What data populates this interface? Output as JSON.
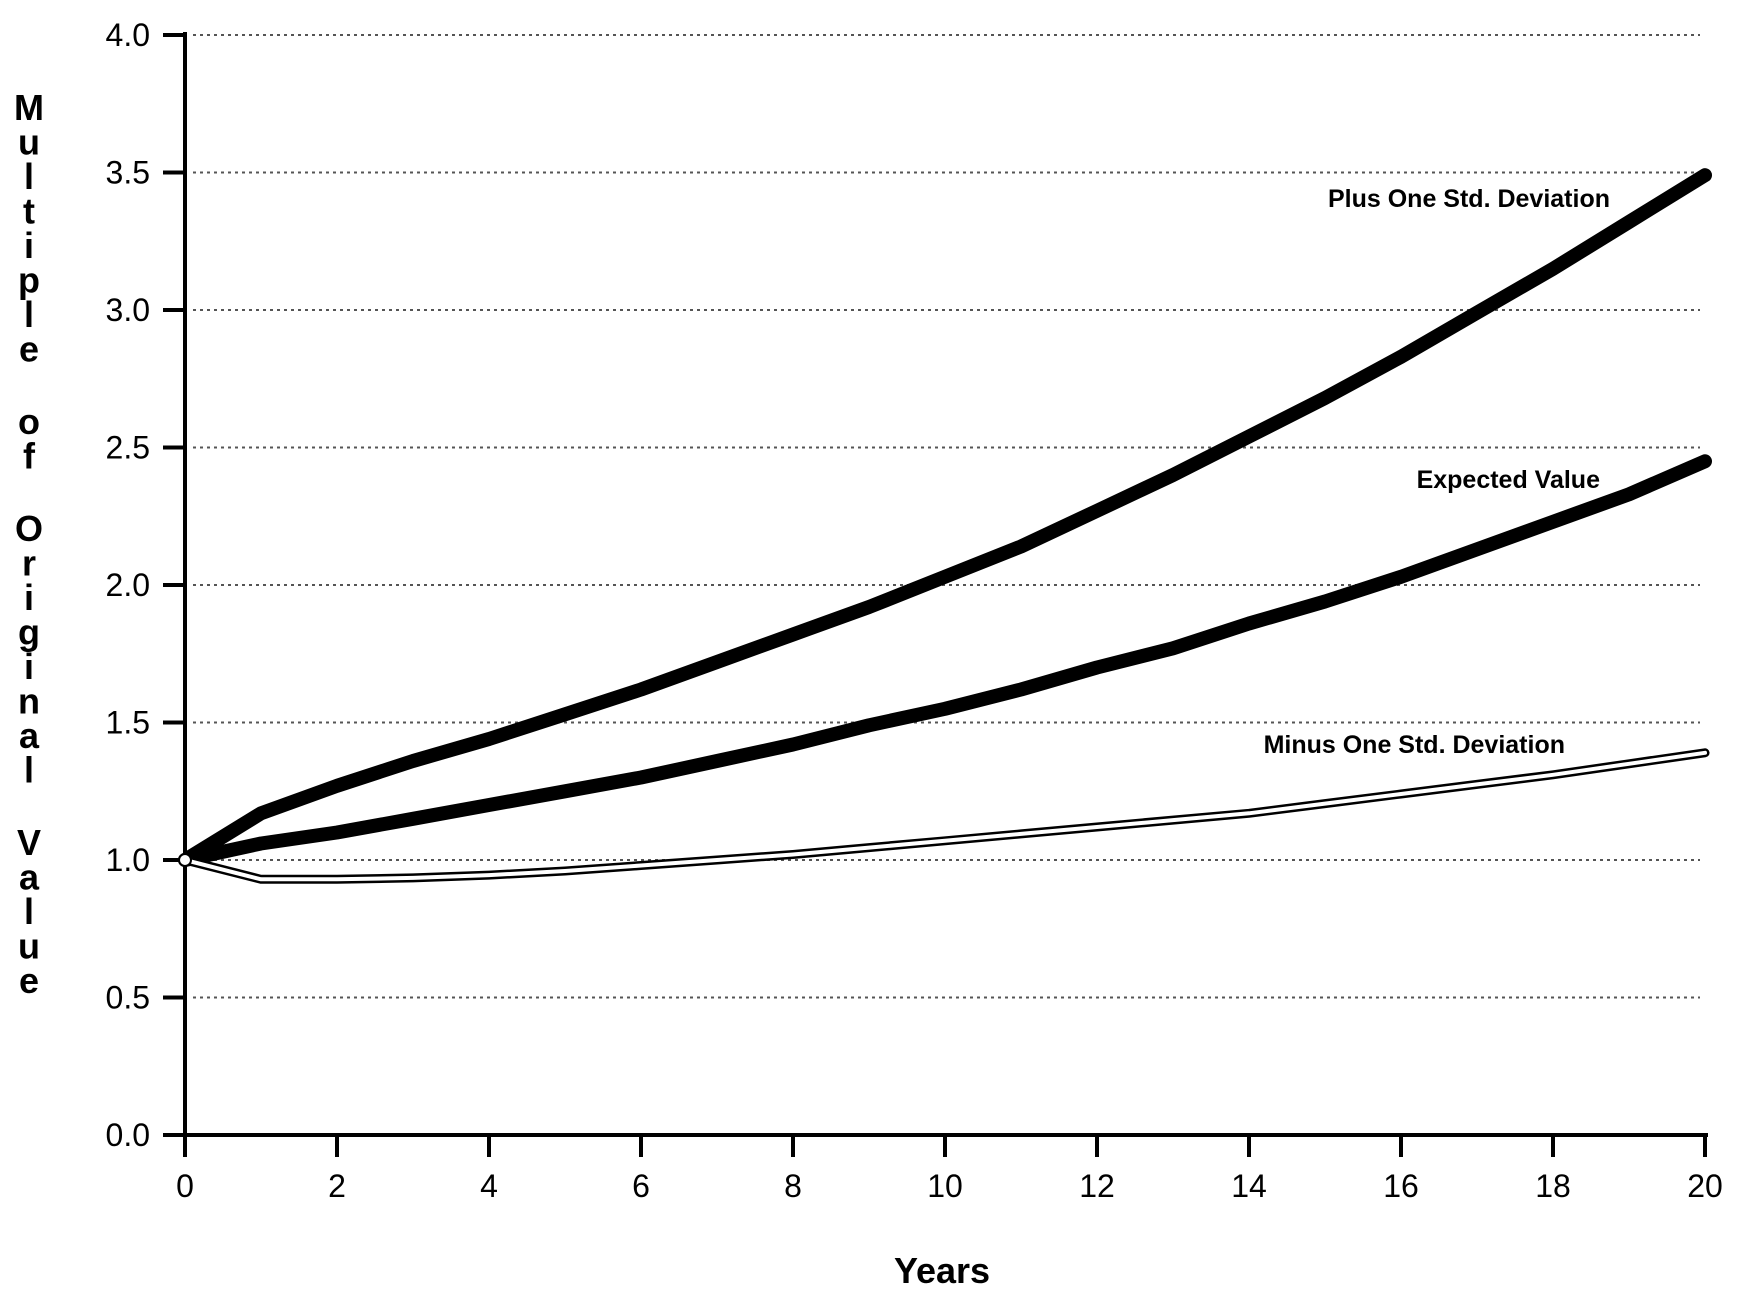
{
  "chart_data": {
    "type": "line",
    "title": "",
    "xlabel": "Years",
    "ylabel": "Multiple of Original Value",
    "x_ticks": [
      "0",
      "2",
      "4",
      "6",
      "8",
      "10",
      "12",
      "14",
      "16",
      "18",
      "20"
    ],
    "y_ticks": [
      "0.0",
      "0.5",
      "1.0",
      "1.5",
      "2.0",
      "2.5",
      "3.0",
      "3.5",
      "4.0"
    ],
    "xlim": [
      0,
      20
    ],
    "ylim": [
      0,
      4
    ],
    "grid": "horizontal dotted",
    "legend": "inline labels at right end of lines",
    "x": [
      0,
      1,
      2,
      3,
      4,
      5,
      6,
      7,
      8,
      9,
      10,
      11,
      12,
      13,
      14,
      15,
      16,
      17,
      18,
      19,
      20
    ],
    "series": [
      {
        "name": "Plus One Std. Deviation",
        "style": "thick",
        "values": [
          1.0,
          1.17,
          1.27,
          1.36,
          1.44,
          1.53,
          1.62,
          1.72,
          1.82,
          1.92,
          2.03,
          2.14,
          2.27,
          2.4,
          2.54,
          2.68,
          2.83,
          2.99,
          3.15,
          3.32,
          3.49
        ]
      },
      {
        "name": "Expected Value",
        "style": "thick",
        "values": [
          1.0,
          1.06,
          1.1,
          1.15,
          1.2,
          1.25,
          1.3,
          1.36,
          1.42,
          1.49,
          1.55,
          1.62,
          1.7,
          1.77,
          1.86,
          1.94,
          2.03,
          2.13,
          2.23,
          2.33,
          2.45
        ]
      },
      {
        "name": "Minus One Std. Deviation",
        "style": "double-outline",
        "values": [
          1.0,
          0.93,
          0.93,
          0.935,
          0.945,
          0.96,
          0.98,
          1.0,
          1.02,
          1.045,
          1.07,
          1.095,
          1.12,
          1.145,
          1.17,
          1.205,
          1.24,
          1.275,
          1.31,
          1.35,
          1.39
        ]
      }
    ]
  }
}
